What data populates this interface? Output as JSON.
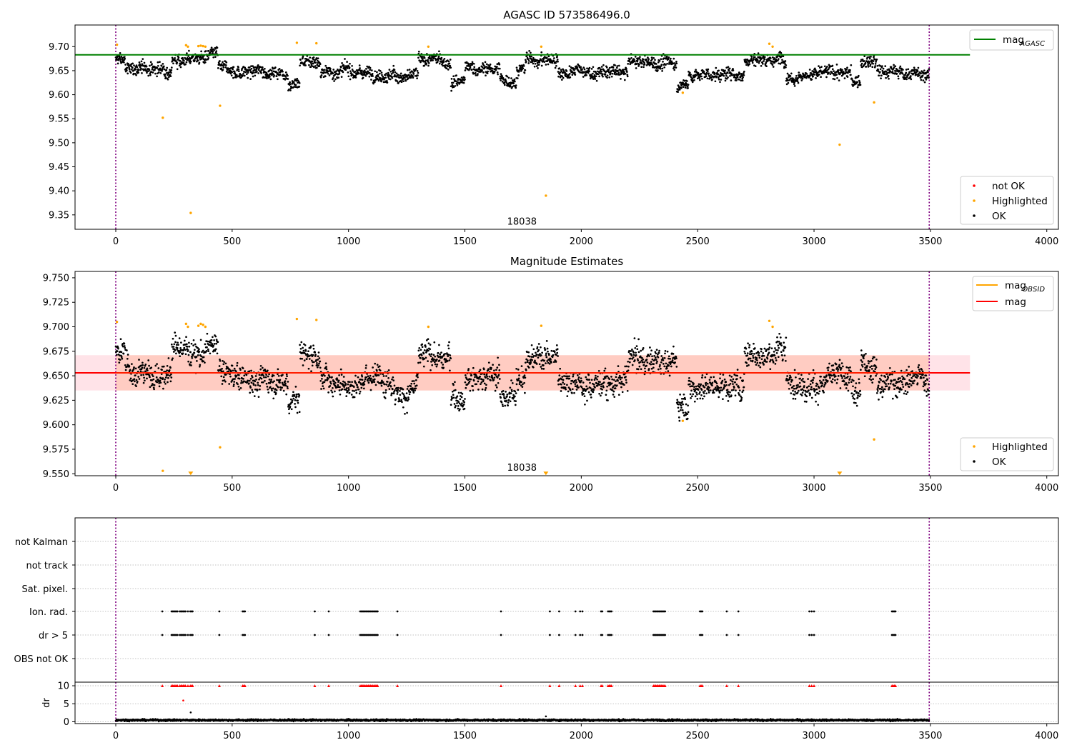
{
  "chart_data": [
    {
      "type": "scatter",
      "title": "AGASC ID 573586496.0",
      "xlim": [
        -175,
        4050
      ],
      "ylim": [
        9.32,
        9.745
      ],
      "xticks": [
        0,
        500,
        1000,
        1500,
        2000,
        2500,
        3000,
        3500,
        4000
      ],
      "yticks": [
        "9.35",
        "9.40",
        "9.45",
        "9.50",
        "9.55",
        "9.60",
        "9.65",
        "9.70"
      ],
      "reference_line": {
        "name": "mag_AGASC",
        "label": "mag",
        "subscript": "AGASC",
        "value": 9.683,
        "x_range": [
          -175,
          3670
        ],
        "color": "#008000"
      },
      "vlines": [
        0,
        3495
      ],
      "annotation": {
        "text": "18038",
        "x": 1745,
        "y": 9.33
      },
      "legend_top": [
        {
          "label": "mag",
          "subscript": "AGASC",
          "color": "#008000",
          "kind": "line"
        }
      ],
      "legend_bottom": [
        {
          "label": "not OK",
          "color": "#ff0000",
          "kind": "dot"
        },
        {
          "label": "Highlighted",
          "color": "#ffa500",
          "kind": "dot"
        },
        {
          "label": "OK",
          "color": "#000000",
          "kind": "dot"
        }
      ],
      "highlighted_points": [
        {
          "x": 5,
          "y": 9.704
        },
        {
          "x": 202,
          "y": 9.552
        },
        {
          "x": 302,
          "y": 9.703
        },
        {
          "x": 310,
          "y": 9.7
        },
        {
          "x": 322,
          "y": 9.354
        },
        {
          "x": 355,
          "y": 9.701
        },
        {
          "x": 365,
          "y": 9.702
        },
        {
          "x": 375,
          "y": 9.701
        },
        {
          "x": 385,
          "y": 9.7
        },
        {
          "x": 448,
          "y": 9.577
        },
        {
          "x": 778,
          "y": 9.708
        },
        {
          "x": 862,
          "y": 9.707
        },
        {
          "x": 1343,
          "y": 9.7
        },
        {
          "x": 1828,
          "y": 9.7
        },
        {
          "x": 1848,
          "y": 9.39
        },
        {
          "x": 2436,
          "y": 9.604
        },
        {
          "x": 2808,
          "y": 9.706
        },
        {
          "x": 2822,
          "y": 9.7
        },
        {
          "x": 3110,
          "y": 9.496
        },
        {
          "x": 3258,
          "y": 9.584
        }
      ],
      "ok_series_profile": {
        "x_range": [
          0,
          3495
        ],
        "baseline": 9.652,
        "scatter": 0.012,
        "segments": [
          {
            "x": [
              0,
              40
            ],
            "level": 9.672
          },
          {
            "x": [
              40,
              200
            ],
            "level": 9.654
          },
          {
            "x": [
              240,
              440
            ],
            "level": 9.678
          },
          {
            "x": [
              450,
              740
            ],
            "level": 9.648
          },
          {
            "x": [
              740,
              790
            ],
            "level": 9.628
          },
          {
            "x": [
              790,
              880
            ],
            "level": 9.672
          },
          {
            "x": [
              880,
              1200
            ],
            "level": 9.648
          },
          {
            "x": [
              1200,
              1300
            ],
            "level": 9.638
          },
          {
            "x": [
              1300,
              1440
            ],
            "level": 9.668
          },
          {
            "x": [
              1440,
              1500
            ],
            "level": 9.628
          },
          {
            "x": [
              1500,
              1650
            ],
            "level": 9.652
          },
          {
            "x": [
              1650,
              1720
            ],
            "level": 9.63
          },
          {
            "x": [
              1760,
              1900
            ],
            "level": 9.672
          },
          {
            "x": [
              1900,
              2000
            ],
            "level": 9.648
          },
          {
            "x": [
              2000,
              2200
            ],
            "level": 9.645
          },
          {
            "x": [
              2200,
              2410
            ],
            "level": 9.666
          },
          {
            "x": [
              2410,
              2460
            ],
            "level": 9.622
          },
          {
            "x": [
              2460,
              2700
            ],
            "level": 9.642
          },
          {
            "x": [
              2700,
              2880
            ],
            "level": 9.676
          },
          {
            "x": [
              2880,
              3160
            ],
            "level": 9.645
          },
          {
            "x": [
              3160,
              3200
            ],
            "level": 9.626
          },
          {
            "x": [
              3200,
              3270
            ],
            "level": 9.666
          },
          {
            "x": [
              3270,
              3495
            ],
            "level": 9.646
          }
        ]
      }
    },
    {
      "type": "scatter",
      "title": "Magnitude Estimates",
      "xlim": [
        -175,
        4050
      ],
      "ylim": [
        9.548,
        9.7565
      ],
      "xticks": [
        0,
        500,
        1000,
        1500,
        2000,
        2500,
        3000,
        3500,
        4000
      ],
      "yticks": [
        "9.550",
        "9.575",
        "9.600",
        "9.625",
        "9.650",
        "9.675",
        "9.700",
        "9.725",
        "9.750"
      ],
      "reference_line": {
        "name": "mag",
        "label": "mag",
        "value": 9.653,
        "x_range": [
          -175,
          3670
        ],
        "color": "#ff0000"
      },
      "band": {
        "y": [
          9.635,
          9.671
        ],
        "x_range": [
          -175,
          3670
        ],
        "colors": [
          "#ffc0cb",
          "#ffa07a"
        ]
      },
      "vlines": [
        0,
        3495
      ],
      "annotation": {
        "text": "18038",
        "x": 1745,
        "y": 9.553
      },
      "legend_top": [
        {
          "label": "mag",
          "subscript": "OBSID",
          "color": "#ffa500",
          "kind": "line"
        },
        {
          "label": "mag",
          "color": "#ff0000",
          "kind": "line"
        }
      ],
      "legend_bottom": [
        {
          "label": "Highlighted",
          "color": "#ffa500",
          "kind": "dot"
        },
        {
          "label": "OK",
          "color": "#000000",
          "kind": "dot"
        }
      ],
      "highlighted_points": [
        {
          "x": 5,
          "y": 9.705
        },
        {
          "x": 202,
          "y": 9.553
        },
        {
          "x": 302,
          "y": 9.703
        },
        {
          "x": 310,
          "y": 9.7
        },
        {
          "x": 355,
          "y": 9.701
        },
        {
          "x": 365,
          "y": 9.703
        },
        {
          "x": 375,
          "y": 9.702
        },
        {
          "x": 385,
          "y": 9.7
        },
        {
          "x": 448,
          "y": 9.577
        },
        {
          "x": 778,
          "y": 9.708
        },
        {
          "x": 862,
          "y": 9.707
        },
        {
          "x": 1343,
          "y": 9.7
        },
        {
          "x": 1828,
          "y": 9.701
        },
        {
          "x": 2436,
          "y": 9.604
        },
        {
          "x": 2808,
          "y": 9.706
        },
        {
          "x": 2822,
          "y": 9.7
        },
        {
          "x": 3258,
          "y": 9.585
        }
      ],
      "clipped_markers": [
        {
          "x": 322,
          "y": 9.55
        },
        {
          "x": 1848,
          "y": 9.55
        },
        {
          "x": 3110,
          "y": 9.55
        }
      ],
      "ok_series_profile": {
        "x_range": [
          0,
          3495
        ],
        "baseline": 9.652,
        "scatter": 0.012,
        "segments": [
          {
            "x": [
              0,
              40
            ],
            "level": 9.672
          },
          {
            "x": [
              40,
              200
            ],
            "level": 9.654
          },
          {
            "x": [
              240,
              440
            ],
            "level": 9.678
          },
          {
            "x": [
              450,
              740
            ],
            "level": 9.648
          },
          {
            "x": [
              740,
              790
            ],
            "level": 9.628
          },
          {
            "x": [
              790,
              880
            ],
            "level": 9.672
          },
          {
            "x": [
              880,
              1200
            ],
            "level": 9.648
          },
          {
            "x": [
              1200,
              1300
            ],
            "level": 9.638
          },
          {
            "x": [
              1300,
              1440
            ],
            "level": 9.668
          },
          {
            "x": [
              1440,
              1500
            ],
            "level": 9.628
          },
          {
            "x": [
              1500,
              1650
            ],
            "level": 9.652
          },
          {
            "x": [
              1650,
              1720
            ],
            "level": 9.63
          },
          {
            "x": [
              1760,
              1900
            ],
            "level": 9.672
          },
          {
            "x": [
              1900,
              2000
            ],
            "level": 9.648
          },
          {
            "x": [
              2000,
              2200
            ],
            "level": 9.645
          },
          {
            "x": [
              2200,
              2410
            ],
            "level": 9.666
          },
          {
            "x": [
              2410,
              2460
            ],
            "level": 9.622
          },
          {
            "x": [
              2460,
              2700
            ],
            "level": 9.642
          },
          {
            "x": [
              2700,
              2880
            ],
            "level": 9.676
          },
          {
            "x": [
              2880,
              3160
            ],
            "level": 9.645
          },
          {
            "x": [
              3160,
              3200
            ],
            "level": 9.626
          },
          {
            "x": [
              3200,
              3270
            ],
            "level": 9.666
          },
          {
            "x": [
              3270,
              3495
            ],
            "level": 9.646
          }
        ]
      }
    },
    {
      "type": "scatter",
      "title": "",
      "xlim": [
        -175,
        4050
      ],
      "ylabels": [
        "not Kalman",
        "not track",
        "Sat. pixel.",
        "Ion. rad.",
        "dr > 5",
        "OBS not OK"
      ],
      "flag_events": {
        "Ion. rad.": [
          200,
          240,
          245,
          250,
          255,
          260,
          265,
          275,
          280,
          285,
          290,
          295,
          300,
          310,
          320,
          325,
          330,
          445,
          545,
          550,
          555,
          855,
          915,
          1050,
          1055,
          1060,
          1065,
          1070,
          1075,
          1080,
          1085,
          1090,
          1095,
          1100,
          1105,
          1110,
          1115,
          1120,
          1125,
          1210,
          1655,
          1865,
          1905,
          1975,
          1995,
          2005,
          2085,
          2090,
          2115,
          2120,
          2125,
          2130,
          2310,
          2315,
          2320,
          2325,
          2330,
          2335,
          2340,
          2345,
          2350,
          2355,
          2360,
          2510,
          2515,
          2520,
          2625,
          2675,
          2980,
          2990,
          3000,
          3335,
          3340,
          3345,
          3350
        ],
        "dr > 5": [
          200,
          240,
          245,
          250,
          255,
          260,
          265,
          275,
          280,
          285,
          290,
          295,
          300,
          310,
          320,
          325,
          330,
          445,
          545,
          550,
          555,
          855,
          915,
          1050,
          1055,
          1060,
          1065,
          1070,
          1075,
          1080,
          1085,
          1090,
          1095,
          1100,
          1105,
          1110,
          1115,
          1120,
          1125,
          1210,
          1655,
          1865,
          1905,
          1975,
          1995,
          2005,
          2085,
          2090,
          2115,
          2120,
          2125,
          2130,
          2310,
          2315,
          2320,
          2325,
          2330,
          2335,
          2340,
          2345,
          2350,
          2355,
          2360,
          2510,
          2515,
          2520,
          2625,
          2675,
          2980,
          2990,
          3000,
          3335,
          3340,
          3345,
          3350
        ]
      },
      "vlines": [
        0,
        3495
      ]
    },
    {
      "type": "scatter",
      "ylabel": "dr",
      "xlim": [
        -175,
        4050
      ],
      "ylim": [
        -0.5,
        11
      ],
      "xticks": [
        0,
        500,
        1000,
        1500,
        2000,
        2500,
        3000,
        3500,
        4000
      ],
      "yticks": [
        "0",
        "5",
        "10"
      ],
      "clipped_markers_y": 10,
      "clipped_markers_x": [
        200,
        240,
        245,
        250,
        255,
        260,
        265,
        275,
        280,
        285,
        290,
        295,
        300,
        310,
        320,
        325,
        330,
        445,
        545,
        550,
        555,
        855,
        915,
        1050,
        1055,
        1060,
        1065,
        1070,
        1075,
        1080,
        1085,
        1090,
        1095,
        1100,
        1105,
        1110,
        1115,
        1120,
        1125,
        1210,
        1655,
        1865,
        1905,
        1975,
        1995,
        2005,
        2085,
        2090,
        2115,
        2120,
        2125,
        2130,
        2310,
        2315,
        2320,
        2325,
        2330,
        2335,
        2340,
        2345,
        2350,
        2355,
        2360,
        2510,
        2515,
        2520,
        2625,
        2675,
        2980,
        2990,
        3000,
        3335,
        3340,
        3345,
        3350
      ],
      "outliers": [
        {
          "x": 290,
          "y": 5.9,
          "color": "#ff0000"
        },
        {
          "x": 322,
          "y": 2.6,
          "color": "#000000"
        },
        {
          "x": 1848,
          "y": 1.5,
          "color": "#000000"
        }
      ],
      "dr_profile": {
        "x_range": [
          0,
          3495
        ],
        "mean": 0.45,
        "scatter": 0.25
      },
      "vlines": [
        0,
        3495
      ]
    }
  ]
}
